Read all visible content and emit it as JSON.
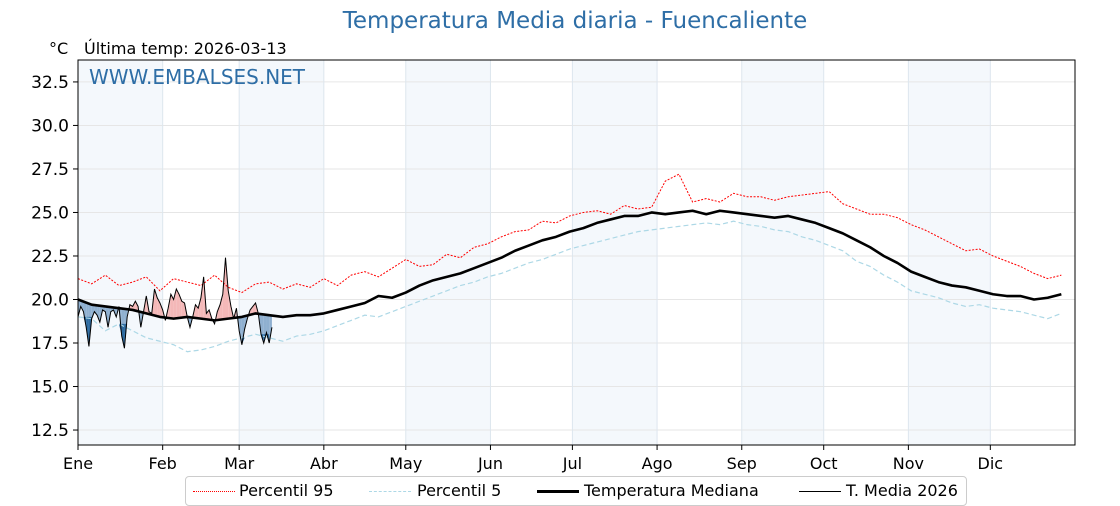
{
  "chart_data": {
    "type": "line",
    "title": "Temperatura Media diaria - Fuencaliente",
    "ylabel": "°C",
    "subtitle": "Última temp: 2026-03-13",
    "watermark": "WWW.EMBALSES.NET",
    "ylim": [
      11.64,
      33.76
    ],
    "xlim": [
      1,
      365
    ],
    "yticks": [
      12.5,
      15.0,
      17.5,
      20.0,
      22.5,
      25.0,
      27.5,
      30.0,
      32.5
    ],
    "ytick_labels": [
      "12.5",
      "15.0",
      "17.5",
      "20.0",
      "22.5",
      "25.0",
      "27.5",
      "30.0",
      "32.5"
    ],
    "month_ticks": [
      1,
      32,
      60,
      91,
      121,
      152,
      182,
      213,
      244,
      274,
      305,
      335
    ],
    "month_labels": [
      "Ene",
      "Feb",
      "Mar",
      "Abr",
      "May",
      "Jun",
      "Jul",
      "Ago",
      "Sep",
      "Oct",
      "Nov",
      "Dic"
    ],
    "grid": true,
    "shaded_months": [
      "Ene",
      "Mar",
      "May",
      "Jul",
      "Sep",
      "Nov"
    ],
    "legend_position": "bottom-center",
    "x_step_days": 5,
    "series": [
      {
        "name": "Percentil 95",
        "color": "#ff0000",
        "style": "dotted",
        "values": [
          21.2,
          20.9,
          21.4,
          20.8,
          21.0,
          21.3,
          20.5,
          21.2,
          21.0,
          20.8,
          21.4,
          20.7,
          20.4,
          20.9,
          21.0,
          20.6,
          20.9,
          20.7,
          21.2,
          20.8,
          21.4,
          21.6,
          21.3,
          21.8,
          22.3,
          21.9,
          22.0,
          22.6,
          22.4,
          23.0,
          23.2,
          23.6,
          23.9,
          24.0,
          24.5,
          24.4,
          24.8,
          25.0,
          25.1,
          24.9,
          25.4,
          25.2,
          25.3,
          26.8,
          27.2,
          25.6,
          25.8,
          25.6,
          26.1,
          25.9,
          25.9,
          25.7,
          25.9,
          26.0,
          26.1,
          26.2,
          25.5,
          25.2,
          24.9,
          24.9,
          24.7,
          24.3,
          24.0,
          23.6,
          23.2,
          22.8,
          22.9,
          22.5,
          22.2,
          21.9,
          21.5,
          21.2,
          21.4
        ]
      },
      {
        "name": "Percentil 5",
        "color": "#add8e6",
        "style": "dashed",
        "values": [
          19.0,
          18.9,
          18.2,
          18.6,
          18.2,
          17.8,
          17.6,
          17.4,
          17.0,
          17.1,
          17.3,
          17.6,
          17.8,
          18.0,
          17.8,
          17.6,
          17.9,
          18.0,
          18.2,
          18.5,
          18.8,
          19.1,
          19.0,
          19.3,
          19.6,
          19.9,
          20.2,
          20.5,
          20.8,
          21.0,
          21.3,
          21.5,
          21.8,
          22.1,
          22.3,
          22.6,
          22.9,
          23.1,
          23.3,
          23.5,
          23.7,
          23.9,
          24.0,
          24.1,
          24.2,
          24.3,
          24.4,
          24.3,
          24.5,
          24.3,
          24.2,
          24.0,
          23.9,
          23.6,
          23.4,
          23.1,
          22.8,
          22.2,
          21.9,
          21.4,
          21.0,
          20.5,
          20.3,
          20.1,
          19.8,
          19.6,
          19.7,
          19.5,
          19.4,
          19.3,
          19.1,
          18.9,
          19.2
        ]
      },
      {
        "name": "Temperatura Mediana",
        "color": "#000000",
        "style": "solid-thick",
        "values": [
          20.0,
          19.7,
          19.6,
          19.5,
          19.4,
          19.2,
          19.0,
          18.9,
          19.0,
          18.9,
          18.8,
          18.9,
          19.0,
          19.2,
          19.1,
          19.0,
          19.1,
          19.1,
          19.2,
          19.4,
          19.6,
          19.8,
          20.2,
          20.1,
          20.4,
          20.8,
          21.1,
          21.3,
          21.5,
          21.8,
          22.1,
          22.4,
          22.8,
          23.1,
          23.4,
          23.6,
          23.9,
          24.1,
          24.4,
          24.6,
          24.8,
          24.8,
          25.0,
          24.9,
          25.0,
          25.1,
          24.9,
          25.1,
          25.0,
          24.9,
          24.8,
          24.7,
          24.8,
          24.6,
          24.4,
          24.1,
          23.8,
          23.4,
          23.0,
          22.5,
          22.1,
          21.6,
          21.3,
          21.0,
          20.8,
          20.7,
          20.5,
          20.3,
          20.2,
          20.2,
          20.0,
          20.1,
          20.3
        ]
      },
      {
        "name": "T. Media 2026",
        "color": "#000000",
        "style": "solid-thin",
        "x_step_days": 1,
        "values": [
          19.0,
          19.6,
          19.3,
          18.4,
          17.3,
          18.9,
          19.3,
          19.1,
          18.7,
          19.4,
          19.3,
          18.4,
          19.3,
          19.4,
          19.0,
          19.6,
          17.9,
          17.2,
          19.0,
          19.7,
          19.6,
          19.9,
          19.6,
          18.4,
          19.3,
          20.2,
          19.3,
          19.2,
          20.6,
          20.1,
          19.8,
          19.4,
          18.8,
          19.5,
          20.3,
          20.0,
          20.6,
          20.3,
          19.9,
          19.8,
          19.0,
          18.4,
          19.0,
          19.7,
          19.5,
          20.1,
          21.3,
          19.2,
          19.4,
          18.9,
          18.6,
          19.3,
          19.7,
          20.3,
          22.4,
          20.5,
          19.6,
          18.9,
          19.5,
          18.2,
          17.4,
          18.3,
          18.9,
          19.4,
          19.6,
          19.8,
          19.2,
          18.0,
          17.5,
          18.1,
          17.5,
          18.4
        ]
      }
    ]
  },
  "legend": {
    "p95": "Percentil 95",
    "p5": "Percentil 5",
    "median": "Temperatura Mediana",
    "current": "T. Media 2026"
  },
  "colors": {
    "title": "#2e6ea6",
    "watermark": "#2e6ea6",
    "band": "#f4f8fc",
    "above": "#f4b8b8",
    "below": "#8fb0d0",
    "below_dark": "#2c6aa0"
  }
}
